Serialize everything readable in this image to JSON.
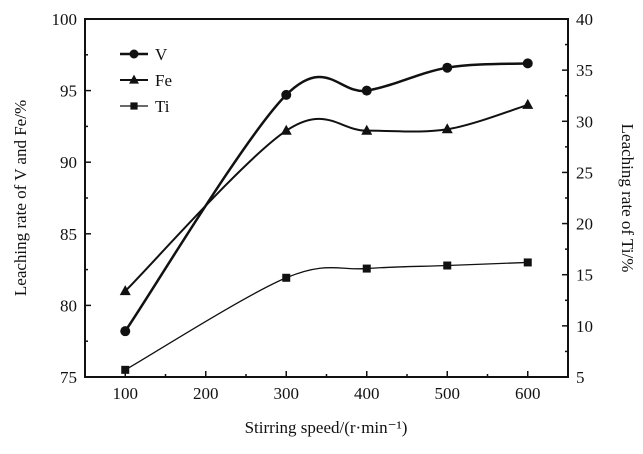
{
  "chart_data": {
    "type": "line",
    "title": "",
    "xlabel": "Stirring speed/(r·min⁻¹)",
    "ylabel": "Leaching rate of V and Fe/%",
    "y2label": "Leaching rate of Ti/%",
    "xlim": [
      50,
      650
    ],
    "ylim": [
      75,
      100
    ],
    "y2lim": [
      5,
      40
    ],
    "xticks": [
      100,
      200,
      300,
      400,
      500,
      600
    ],
    "yticks": [
      75,
      80,
      85,
      90,
      95,
      100
    ],
    "y2ticks": [
      5,
      10,
      15,
      20,
      25,
      30,
      35,
      40
    ],
    "x": [
      100,
      300,
      400,
      500,
      600
    ],
    "legend_position": "top-left",
    "grid": false,
    "series": [
      {
        "name": "V",
        "axis": "left",
        "marker": "circle",
        "values": [
          78.2,
          94.7,
          95.0,
          96.6,
          96.9
        ]
      },
      {
        "name": "Fe",
        "axis": "left",
        "marker": "triangle",
        "values": [
          81.0,
          92.2,
          92.2,
          92.3,
          94.0
        ]
      },
      {
        "name": "Ti",
        "axis": "right",
        "marker": "square",
        "values": [
          5.7,
          14.7,
          15.6,
          15.9,
          16.2
        ]
      }
    ]
  }
}
